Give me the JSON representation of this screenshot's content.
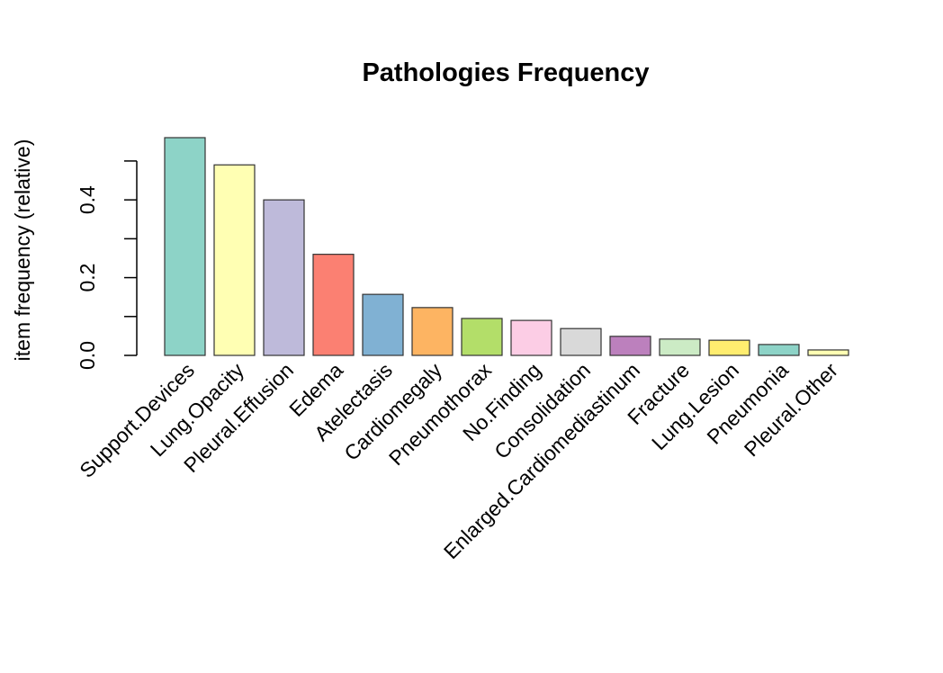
{
  "chart_data": {
    "type": "bar",
    "title": "Pathologies Frequency",
    "y_label": "item frequency (relative)",
    "categories": [
      "Support.Devices",
      "Lung.Opacity",
      "Pleural.Effusion",
      "Edema",
      "Atelectasis",
      "Cardiomegaly",
      "Pneumothorax",
      "No.Finding",
      "Consolidation",
      "Enlarged.Cardiomediastinum",
      "Fracture",
      "Lung.Lesion",
      "Pneumonia",
      "Pleural.Other"
    ],
    "values": [
      0.56,
      0.49,
      0.4,
      0.26,
      0.157,
      0.123,
      0.095,
      0.09,
      0.069,
      0.049,
      0.042,
      0.039,
      0.028,
      0.014
    ],
    "colors": [
      "#8DD3C7",
      "#FFFFB3",
      "#BEBADA",
      "#FB8072",
      "#80B1D3",
      "#FDB462",
      "#B3DE69",
      "#FCCDE5",
      "#D9D9D9",
      "#BC80BD",
      "#CCEBC5",
      "#FFED6F",
      "#8DD3C7",
      "#FFFFB3"
    ],
    "ylim": [
      0,
      0.56
    ],
    "yticks": [
      {
        "value": 0,
        "label": "0.0"
      },
      0.2,
      0.4
    ],
    "yminorticks": [
      0.1,
      0.3,
      0.5
    ],
    "grid": false
  }
}
